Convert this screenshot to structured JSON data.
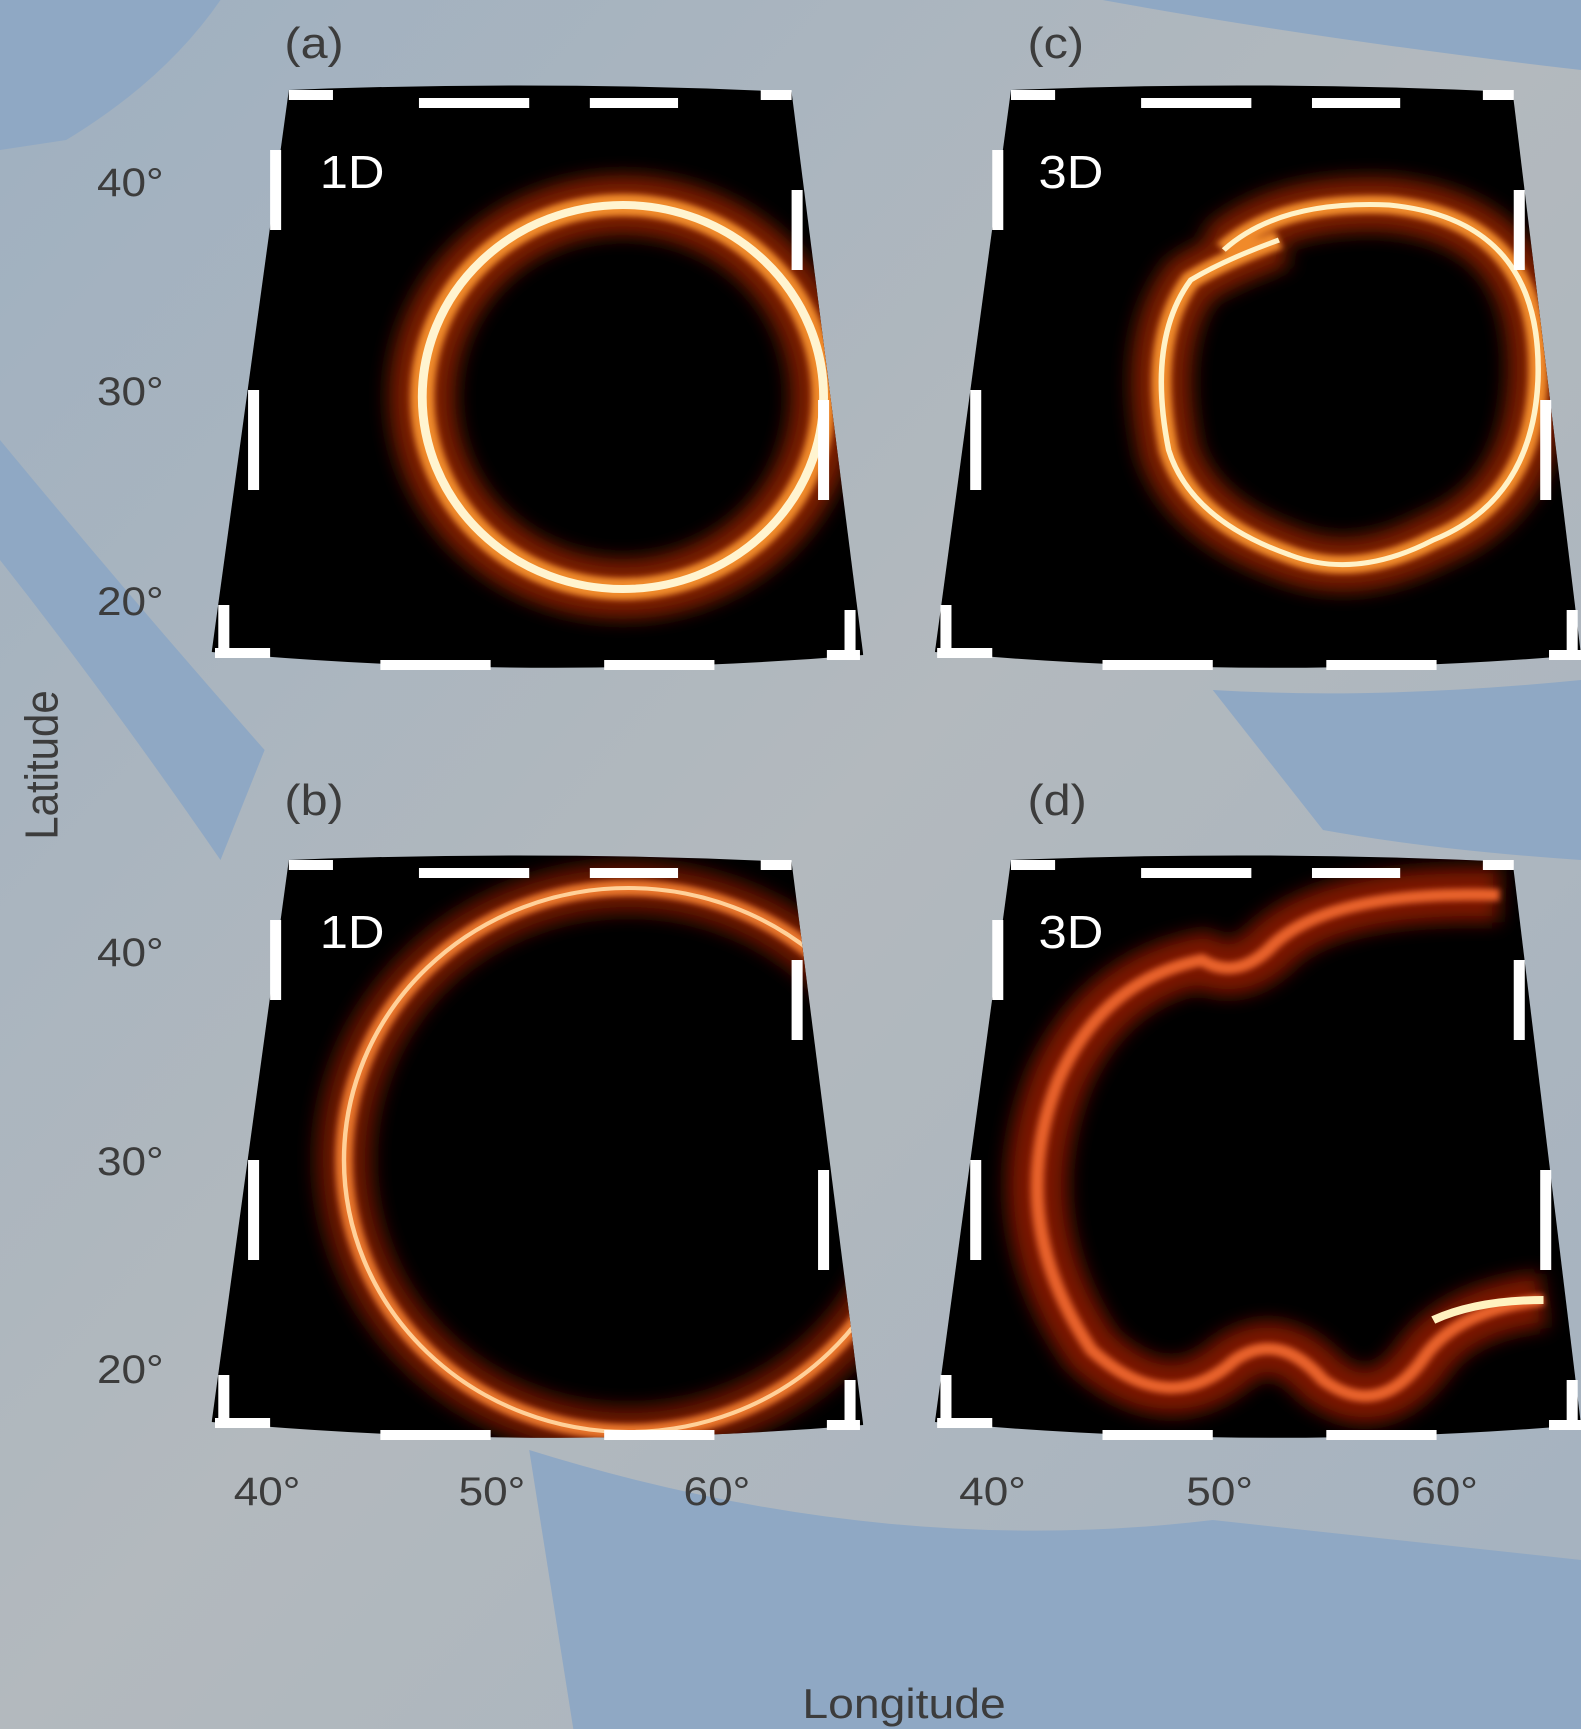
{
  "panels": [
    {
      "label": "(a)",
      "model": "1D"
    },
    {
      "label": "(b)",
      "model": "1D"
    },
    {
      "label": "(c)",
      "model": "3D"
    },
    {
      "label": "(d)",
      "model": "3D"
    }
  ],
  "latitude_ticks": [
    "40°",
    "30°",
    "20°"
  ],
  "longitude_ticks": [
    "40°",
    "50°",
    "60°"
  ],
  "y_label": "Latitude",
  "x_label": "Longitude"
}
